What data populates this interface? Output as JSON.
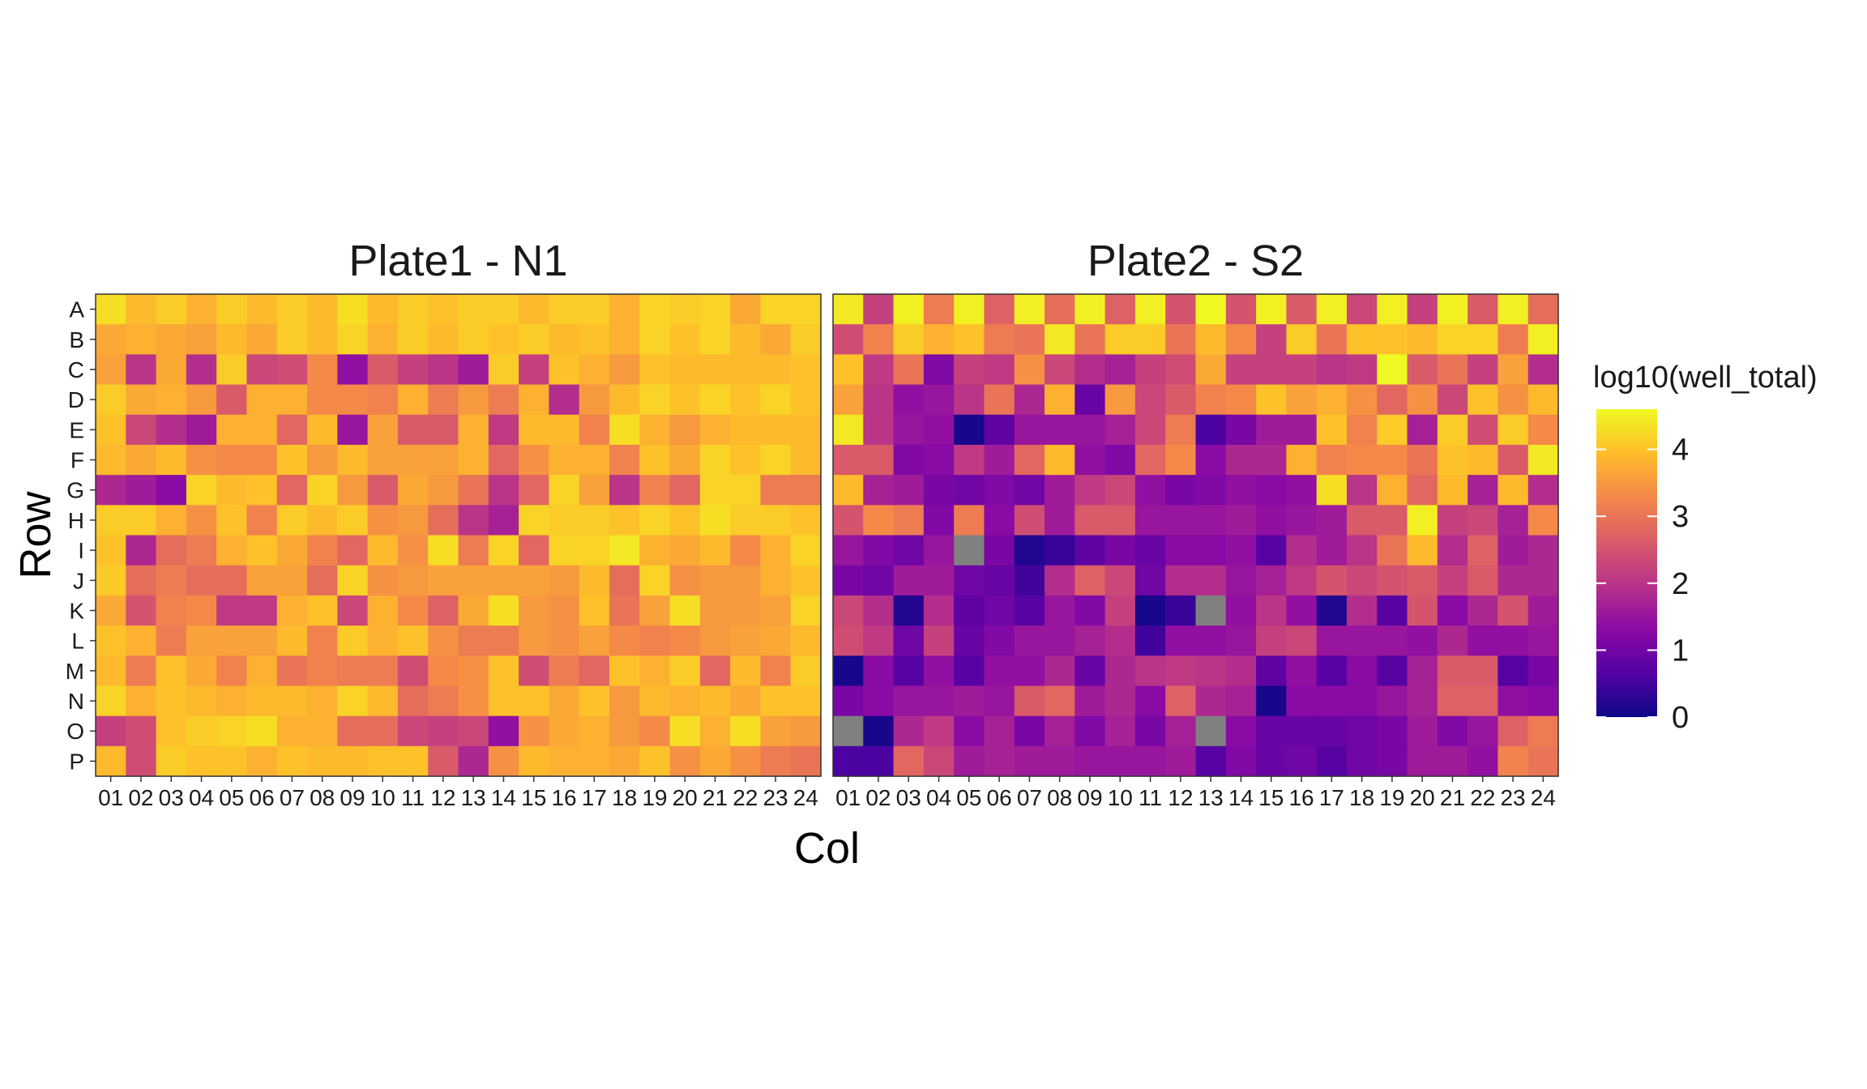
{
  "chart_data": {
    "type": "heatmap",
    "xlabel": "Col",
    "ylabel": "Row",
    "rows": [
      "A",
      "B",
      "C",
      "D",
      "E",
      "F",
      "G",
      "H",
      "I",
      "J",
      "K",
      "L",
      "M",
      "N",
      "O",
      "P"
    ],
    "cols": [
      "01",
      "02",
      "03",
      "04",
      "05",
      "06",
      "07",
      "08",
      "09",
      "10",
      "11",
      "12",
      "13",
      "14",
      "15",
      "16",
      "17",
      "18",
      "19",
      "20",
      "21",
      "22",
      "23",
      "24"
    ],
    "legend": {
      "title": "log10(well_total)",
      "ticks": [
        0,
        1,
        2,
        3,
        4
      ],
      "range": [
        0,
        4.6
      ],
      "placement": "right",
      "na_color": "#808080"
    },
    "colormap": [
      "#0d0887",
      "#5302a3",
      "#8b0aa5",
      "#b83289",
      "#db5c68",
      "#f48849",
      "#febd2a",
      "#f0f921"
    ],
    "panels": [
      {
        "title": "Plate1 - N1",
        "values": [
          [
            4.3,
            3.9,
            4.1,
            3.8,
            4.1,
            3.9,
            4.1,
            3.9,
            4.3,
            3.9,
            4.1,
            4.0,
            4.1,
            4.1,
            3.9,
            4.1,
            4.1,
            3.8,
            4.2,
            4.1,
            4.2,
            3.7,
            4.2,
            4.2
          ],
          [
            3.7,
            3.8,
            3.7,
            3.6,
            3.9,
            3.7,
            4.1,
            3.9,
            4.2,
            3.8,
            4.1,
            3.9,
            4.1,
            4.0,
            4.1,
            3.9,
            4.0,
            3.8,
            4.2,
            4.0,
            4.2,
            3.9,
            3.7,
            4.1
          ],
          [
            3.6,
            2.0,
            3.7,
            1.9,
            4.1,
            2.3,
            2.4,
            3.3,
            1.4,
            2.6,
            2.2,
            2.0,
            1.6,
            4.1,
            2.2,
            4.0,
            3.8,
            3.5,
            4.0,
            3.9,
            3.9,
            3.9,
            3.9,
            4.0
          ],
          [
            4.1,
            3.7,
            3.8,
            3.5,
            2.6,
            3.8,
            3.8,
            3.3,
            3.3,
            3.2,
            3.8,
            3.1,
            3.5,
            3.1,
            3.8,
            1.9,
            3.5,
            3.9,
            4.2,
            4.0,
            4.2,
            4.0,
            4.2,
            4.0
          ],
          [
            4.0,
            2.3,
            1.9,
            1.6,
            3.8,
            3.8,
            2.8,
            3.9,
            1.5,
            3.6,
            2.6,
            2.6,
            3.8,
            2.1,
            3.9,
            3.9,
            3.2,
            4.3,
            3.8,
            3.5,
            3.8,
            3.9,
            3.9,
            3.9
          ],
          [
            3.9,
            3.7,
            3.9,
            3.4,
            3.3,
            3.3,
            4.0,
            3.5,
            3.9,
            3.6,
            3.6,
            3.6,
            3.8,
            2.8,
            3.4,
            3.8,
            3.8,
            3.2,
            4.0,
            3.7,
            4.2,
            4.0,
            4.2,
            3.9
          ],
          [
            1.8,
            1.6,
            1.3,
            4.2,
            3.9,
            4.0,
            2.8,
            4.2,
            3.5,
            2.6,
            3.7,
            3.5,
            3.0,
            2.0,
            2.8,
            4.2,
            3.6,
            2.0,
            3.2,
            2.8,
            4.2,
            4.2,
            3.1,
            3.1
          ],
          [
            4.1,
            4.1,
            3.8,
            3.4,
            4.0,
            3.2,
            4.1,
            3.9,
            4.1,
            3.4,
            3.5,
            2.9,
            2.0,
            1.7,
            4.2,
            4.1,
            4.1,
            4.0,
            4.2,
            4.0,
            4.3,
            4.1,
            4.1,
            4.0
          ],
          [
            4.0,
            1.8,
            2.9,
            3.1,
            3.8,
            4.0,
            3.7,
            3.2,
            2.8,
            3.9,
            3.4,
            4.3,
            3.1,
            4.2,
            2.8,
            4.2,
            4.2,
            4.4,
            3.8,
            3.7,
            3.9,
            3.3,
            3.8,
            4.2
          ],
          [
            4.1,
            2.9,
            3.1,
            2.9,
            2.9,
            3.6,
            3.6,
            2.9,
            4.2,
            3.4,
            3.5,
            3.6,
            3.6,
            3.6,
            3.6,
            3.5,
            3.9,
            2.9,
            4.2,
            3.4,
            3.5,
            3.5,
            3.8,
            4.0
          ],
          [
            3.7,
            2.5,
            3.2,
            3.3,
            2.1,
            2.1,
            3.8,
            4.0,
            2.3,
            3.8,
            3.3,
            2.7,
            3.7,
            4.3,
            3.5,
            3.4,
            4.0,
            3.0,
            3.6,
            4.3,
            3.5,
            3.5,
            3.6,
            4.2
          ],
          [
            4.0,
            3.8,
            3.1,
            3.6,
            3.6,
            3.6,
            3.9,
            3.2,
            4.1,
            3.8,
            4.0,
            3.4,
            3.1,
            3.1,
            3.5,
            3.4,
            3.6,
            3.3,
            3.2,
            3.3,
            3.5,
            3.6,
            3.7,
            3.9
          ],
          [
            3.9,
            3.1,
            4.0,
            3.7,
            3.2,
            3.8,
            3.0,
            3.2,
            3.1,
            3.1,
            2.4,
            3.3,
            3.4,
            4.0,
            2.4,
            3.1,
            2.8,
            4.0,
            3.8,
            4.1,
            2.8,
            3.9,
            3.2,
            4.1
          ],
          [
            4.2,
            3.8,
            4.0,
            3.9,
            3.8,
            3.9,
            3.9,
            3.8,
            4.2,
            3.9,
            2.9,
            3.1,
            3.4,
            4.0,
            4.0,
            3.7,
            4.0,
            3.5,
            3.9,
            3.8,
            3.9,
            3.7,
            4.0,
            4.0
          ],
          [
            2.2,
            2.4,
            4.0,
            4.1,
            4.2,
            4.3,
            3.8,
            3.8,
            2.9,
            2.9,
            2.3,
            2.2,
            2.3,
            1.4,
            3.4,
            3.7,
            3.8,
            3.5,
            3.3,
            4.3,
            3.8,
            4.3,
            3.6,
            3.5
          ],
          [
            3.9,
            2.4,
            4.1,
            4.0,
            4.0,
            3.8,
            4.0,
            3.9,
            3.9,
            4.0,
            4.0,
            2.6,
            1.8,
            3.4,
            3.9,
            3.8,
            3.8,
            3.7,
            4.0,
            3.4,
            3.7,
            3.4,
            3.1,
            3.0
          ]
        ]
      },
      {
        "title": "Plate2 - S2",
        "values": [
          [
            4.4,
            2.2,
            4.5,
            3.1,
            4.5,
            2.7,
            4.5,
            2.9,
            4.5,
            2.7,
            4.5,
            2.5,
            4.6,
            2.5,
            4.5,
            2.6,
            4.5,
            2.3,
            4.5,
            2.2,
            4.5,
            2.6,
            4.5,
            2.9
          ],
          [
            2.4,
            3.2,
            4.1,
            3.8,
            4.0,
            3.1,
            3.0,
            4.4,
            3.0,
            4.1,
            4.1,
            3.0,
            3.9,
            3.3,
            2.2,
            4.1,
            3.0,
            4.0,
            4.0,
            3.9,
            4.2,
            4.2,
            3.1,
            4.5
          ],
          [
            4.0,
            2.1,
            3.0,
            1.2,
            2.2,
            2.1,
            3.4,
            2.3,
            1.9,
            1.7,
            2.2,
            2.4,
            3.7,
            2.2,
            2.2,
            2.2,
            2.0,
            2.1,
            4.6,
            2.6,
            3.0,
            2.2,
            3.6,
            1.9
          ],
          [
            3.6,
            2.0,
            1.4,
            1.5,
            2.0,
            3.0,
            1.8,
            3.8,
            0.9,
            3.5,
            2.3,
            2.6,
            3.2,
            3.3,
            4.0,
            3.6,
            3.8,
            3.4,
            2.8,
            3.4,
            2.3,
            4.0,
            3.4,
            3.9
          ],
          [
            4.4,
            2.0,
            1.5,
            1.4,
            0.1,
            0.8,
            1.5,
            1.5,
            1.5,
            1.7,
            2.3,
            3.1,
            0.6,
            1.1,
            1.6,
            1.6,
            4.0,
            3.2,
            4.1,
            1.7,
            4.1,
            2.4,
            4.1,
            3.3
          ],
          [
            2.6,
            2.6,
            1.2,
            1.3,
            2.1,
            1.6,
            2.8,
            3.9,
            1.4,
            1.2,
            2.8,
            3.3,
            1.3,
            1.8,
            1.8,
            3.8,
            3.2,
            3.3,
            3.3,
            3.0,
            4.0,
            3.9,
            2.6,
            4.4
          ],
          [
            3.9,
            1.7,
            1.6,
            1.1,
            1.0,
            1.2,
            1.0,
            1.6,
            2.1,
            2.3,
            1.4,
            1.1,
            1.2,
            1.4,
            1.3,
            1.4,
            4.3,
            2.0,
            3.8,
            2.8,
            3.9,
            1.7,
            3.9,
            1.9
          ],
          [
            2.5,
            3.3,
            3.1,
            1.2,
            3.1,
            1.3,
            2.4,
            1.6,
            2.6,
            2.6,
            1.5,
            1.5,
            1.5,
            1.6,
            1.4,
            1.5,
            1.6,
            2.6,
            2.6,
            4.5,
            2.2,
            2.3,
            1.7,
            3.3
          ],
          [
            1.5,
            1.2,
            1.0,
            1.5,
            null,
            1.1,
            0.2,
            0.4,
            0.8,
            1.1,
            0.9,
            1.3,
            1.3,
            1.4,
            0.7,
            1.9,
            1.6,
            2.0,
            3.0,
            3.9,
            1.9,
            2.7,
            1.6,
            1.8
          ],
          [
            1.1,
            1.0,
            1.6,
            1.6,
            1.0,
            0.9,
            0.5,
            1.9,
            2.7,
            2.3,
            1.0,
            1.9,
            1.9,
            1.5,
            1.7,
            2.1,
            2.5,
            2.3,
            2.5,
            2.6,
            2.2,
            2.6,
            1.8,
            1.8
          ],
          [
            2.3,
            1.9,
            0.2,
            1.9,
            0.8,
            1.0,
            0.7,
            1.5,
            1.2,
            2.2,
            0.1,
            0.4,
            null,
            1.4,
            2.0,
            1.4,
            0.2,
            1.9,
            0.7,
            2.5,
            1.3,
            1.8,
            2.5,
            1.6
          ],
          [
            2.4,
            2.1,
            1.0,
            2.2,
            0.9,
            1.2,
            1.5,
            1.5,
            1.7,
            1.9,
            0.5,
            1.4,
            1.4,
            1.5,
            2.2,
            2.3,
            1.5,
            1.5,
            1.5,
            1.4,
            1.8,
            1.4,
            1.4,
            1.5
          ],
          [
            0.1,
            1.3,
            0.7,
            1.4,
            0.7,
            1.4,
            1.4,
            1.8,
            0.9,
            1.8,
            2.0,
            2.1,
            2.0,
            1.9,
            0.8,
            1.4,
            0.7,
            1.3,
            0.7,
            1.7,
            2.6,
            2.6,
            0.7,
            1.1
          ],
          [
            1.1,
            1.3,
            1.5,
            1.5,
            1.6,
            1.5,
            2.6,
            2.8,
            1.6,
            1.8,
            1.3,
            2.7,
            1.8,
            1.7,
            0.1,
            1.3,
            1.3,
            1.3,
            1.5,
            1.7,
            2.7,
            2.7,
            1.4,
            1.3
          ],
          [
            null,
            0.1,
            1.8,
            2.1,
            1.3,
            1.7,
            1.1,
            1.7,
            1.2,
            1.7,
            1.1,
            1.7,
            null,
            1.3,
            0.9,
            0.9,
            0.9,
            1.0,
            1.1,
            1.6,
            1.2,
            1.5,
            2.7,
            3.1
          ],
          [
            0.6,
            0.6,
            2.8,
            2.3,
            1.6,
            1.7,
            1.6,
            1.6,
            1.5,
            1.5,
            1.5,
            1.6,
            0.7,
            1.2,
            0.9,
            1.0,
            0.7,
            1.0,
            1.1,
            1.6,
            1.6,
            1.4,
            3.2,
            3.0
          ]
        ]
      }
    ]
  }
}
